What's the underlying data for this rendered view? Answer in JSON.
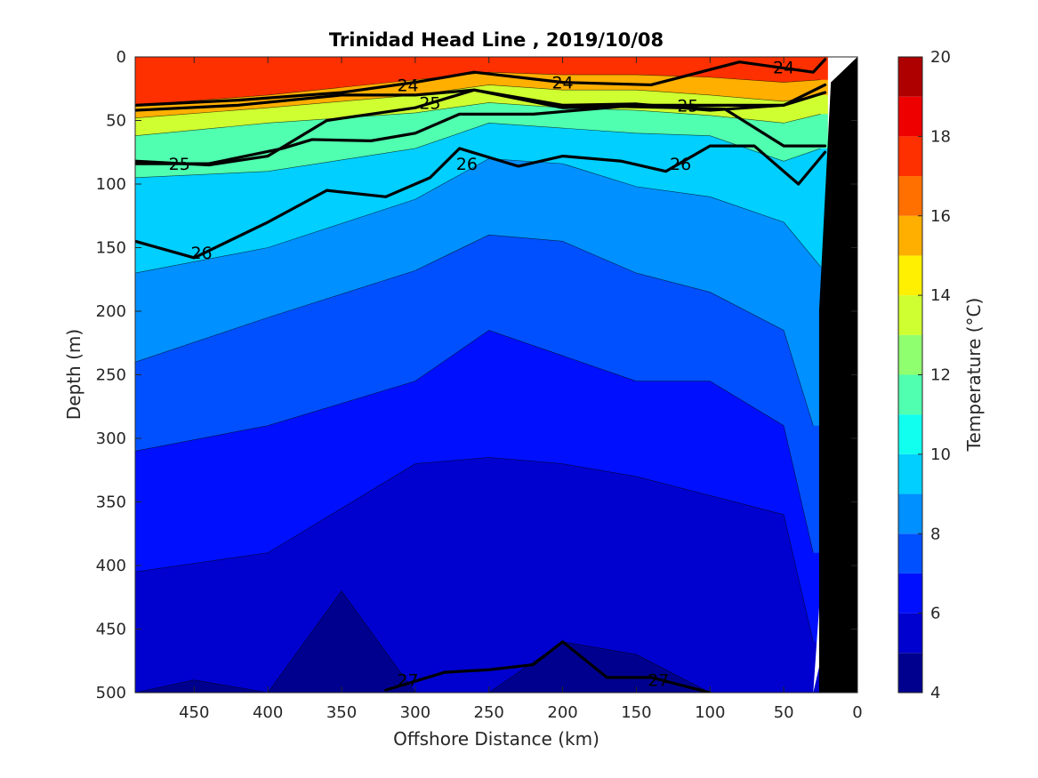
{
  "chart_data": {
    "type": "contour",
    "title": "Trinidad Head Line , 2019/10/08",
    "xlabel": "Offshore Distance (km)",
    "ylabel": "Depth (m)",
    "xlim": [
      490,
      0
    ],
    "ylim": [
      0,
      500
    ],
    "x_reversed": true,
    "y_reversed": true,
    "xticks": [
      450,
      400,
      350,
      300,
      250,
      200,
      150,
      100,
      50,
      0
    ],
    "yticks": [
      0,
      50,
      100,
      150,
      200,
      250,
      300,
      350,
      400,
      450,
      500
    ],
    "colorbar": {
      "label": "Temperature (°C)",
      "range": [
        4,
        20
      ],
      "ticks": [
        4,
        6,
        8,
        10,
        12,
        14,
        16,
        18,
        20
      ],
      "levels": [
        4,
        5,
        6,
        7,
        8,
        9,
        10,
        11,
        12,
        13,
        14,
        15,
        16,
        17,
        18,
        19,
        20
      ],
      "colors": [
        "#00008f",
        "#0000cf",
        "#0010ff",
        "#0050ff",
        "#0090ff",
        "#00cfff",
        "#10ffef",
        "#50ffaf",
        "#90ff6f",
        "#cfff30",
        "#ffef00",
        "#ffaf00",
        "#ff7000",
        "#ff3000",
        "#ef0000",
        "#af0000"
      ]
    },
    "temperature_isotherm_depths": [
      {
        "temp": 16,
        "x": [
          490,
          400,
          300,
          250,
          200,
          150,
          100,
          50,
          25
        ],
        "depth": [
          38,
          30,
          18,
          12,
          14,
          14,
          16,
          20,
          18
        ]
      },
      {
        "temp": 14,
        "x": [
          490,
          400,
          300,
          250,
          200,
          150,
          100,
          50,
          25
        ],
        "depth": [
          48,
          40,
          30,
          22,
          26,
          26,
          30,
          35,
          30
        ]
      },
      {
        "temp": 12,
        "x": [
          490,
          400,
          300,
          250,
          200,
          150,
          100,
          50,
          25
        ],
        "depth": [
          62,
          52,
          44,
          36,
          40,
          42,
          46,
          52,
          45
        ]
      },
      {
        "temp": 10,
        "x": [
          490,
          400,
          300,
          250,
          200,
          150,
          100,
          50,
          25
        ],
        "depth": [
          95,
          90,
          72,
          52,
          56,
          60,
          62,
          82,
          72
        ]
      },
      {
        "temp": 9,
        "x": [
          490,
          400,
          300,
          250,
          200,
          150,
          100,
          50,
          25
        ],
        "depth": [
          170,
          150,
          112,
          80,
          84,
          102,
          110,
          130,
          165
        ]
      },
      {
        "temp": 8,
        "x": [
          490,
          400,
          300,
          250,
          200,
          150,
          100,
          50,
          30
        ],
        "depth": [
          240,
          205,
          168,
          140,
          145,
          170,
          185,
          215,
          290
        ]
      },
      {
        "temp": 7,
        "x": [
          490,
          400,
          300,
          250,
          200,
          150,
          100,
          50,
          30
        ],
        "depth": [
          310,
          290,
          255,
          215,
          235,
          255,
          255,
          290,
          390
        ]
      },
      {
        "temp": 6,
        "x": [
          490,
          400,
          300,
          250,
          200,
          150,
          100,
          50,
          30
        ],
        "depth": [
          405,
          390,
          320,
          315,
          320,
          330,
          345,
          360,
          460
        ]
      },
      {
        "temp": 5,
        "x": [
          490,
          450,
          400,
          350,
          300,
          250,
          200,
          150,
          100
        ],
        "depth": [
          500,
          490,
          500,
          420,
          500,
          500,
          460,
          470,
          500
        ]
      }
    ],
    "density_contours": [
      {
        "label": "24",
        "x": [
          490,
          420,
          350,
          300,
          260,
          200,
          140,
          80,
          30,
          22
        ],
        "depth": [
          38,
          34,
          28,
          20,
          12,
          20,
          22,
          4,
          12,
          2
        ]
      },
      {
        "label": "25",
        "x": [
          490,
          420,
          350,
          300,
          260,
          200,
          150,
          100,
          50,
          22
        ],
        "depth": [
          42,
          38,
          30,
          30,
          26,
          40,
          38,
          38,
          38,
          28
        ]
      },
      {
        "label": "25",
        "x": [
          490,
          440,
          400,
          360,
          300,
          260,
          200,
          150,
          100,
          50,
          22
        ],
        "depth": [
          82,
          85,
          78,
          50,
          40,
          26,
          38,
          37,
          42,
          38,
          22
        ]
      },
      {
        "label": "26",
        "x": [
          490,
          440,
          390,
          370,
          330,
          300,
          270,
          220,
          160,
          120,
          90,
          50,
          22
        ],
        "depth": [
          84,
          84,
          72,
          65,
          66,
          60,
          45,
          45,
          39,
          40,
          41,
          70,
          70
        ]
      },
      {
        "label": "26",
        "x": [
          490,
          450,
          400,
          360,
          320,
          290,
          270,
          230,
          200,
          160,
          130,
          100,
          70,
          40,
          22
        ],
        "depth": [
          145,
          158,
          130,
          105,
          110,
          95,
          72,
          86,
          78,
          82,
          90,
          70,
          70,
          100,
          75
        ]
      },
      {
        "label": "27",
        "x": [
          320,
          280,
          250,
          220,
          200,
          170,
          140,
          100
        ],
        "depth": [
          498,
          484,
          482,
          478,
          460,
          488,
          488,
          500
        ]
      }
    ],
    "density_labels": [
      {
        "label": "24",
        "x": 305,
        "depth": 22
      },
      {
        "label": "24",
        "x": 200,
        "depth": 20
      },
      {
        "label": "24",
        "x": 50,
        "depth": 8
      },
      {
        "label": "25",
        "x": 290,
        "depth": 36
      },
      {
        "label": "25",
        "x": 115,
        "depth": 38
      },
      {
        "label": "25",
        "x": 460,
        "depth": 84
      },
      {
        "label": "26",
        "x": 265,
        "depth": 84
      },
      {
        "label": "26",
        "x": 120,
        "depth": 84
      },
      {
        "label": "26",
        "x": 445,
        "depth": 154
      },
      {
        "label": "27",
        "x": 305,
        "depth": 490
      },
      {
        "label": "27",
        "x": 135,
        "depth": 490
      }
    ],
    "bottom_profile": {
      "x": [
        30,
        24,
        22,
        20,
        20,
        0
      ],
      "depth": [
        500,
        470,
        400,
        200,
        0,
        0
      ]
    },
    "bathymetry": {
      "x": [
        0,
        18,
        26,
        26,
        0
      ],
      "depth": [
        0,
        20,
        200,
        500,
        500
      ]
    }
  }
}
